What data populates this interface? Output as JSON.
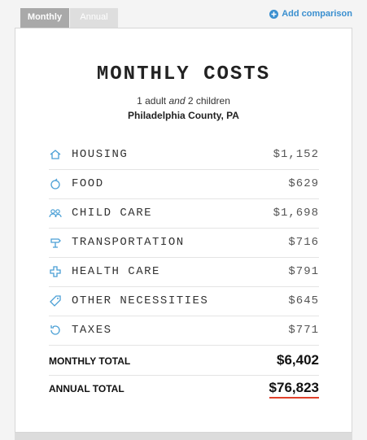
{
  "tabs": [
    "Monthly",
    "Annual"
  ],
  "add_comparison": "Add comparison",
  "card": {
    "title": "MONTHLY COSTS",
    "household": {
      "adults": "1 adult",
      "and": "and",
      "children": "2 children"
    },
    "location": "Philadelphia County, PA",
    "rows": [
      {
        "label": "HOUSING",
        "value": "$1,152"
      },
      {
        "label": "FOOD",
        "value": "$629"
      },
      {
        "label": "CHILD CARE",
        "value": "$1,698"
      },
      {
        "label": "TRANSPORTATION",
        "value": "$716"
      },
      {
        "label": "HEALTH CARE",
        "value": "$791"
      },
      {
        "label": "OTHER NECESSITIES",
        "value": "$645"
      },
      {
        "label": "TAXES",
        "value": "$771"
      }
    ],
    "monthly_total": {
      "label": "MONTHLY TOTAL",
      "value": "$6,402"
    },
    "annual_total": {
      "label": "ANNUAL TOTAL",
      "value": "$76,823"
    }
  }
}
